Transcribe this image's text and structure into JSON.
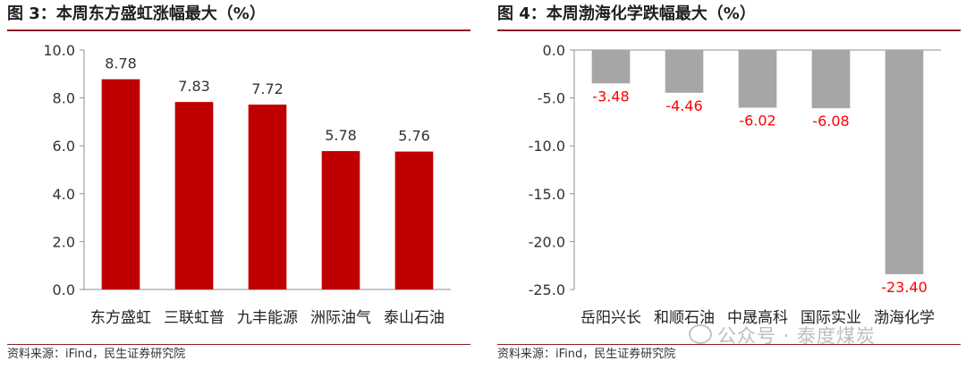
{
  "charts": [
    {
      "title": "图 3：本周东方盛虹涨幅最大（%）",
      "source": "资料来源：iFind，民生证券研究院"
    },
    {
      "title": "图 4：本周渤海化学跌幅最大（%）",
      "source": "资料来源：iFind，民生证券研究院"
    }
  ],
  "watermark": "公众号 · 泰度煤炭",
  "chart_data": [
    {
      "type": "bar",
      "title": "图 3：本周东方盛虹涨幅最大（%）",
      "categories": [
        "东方盛虹",
        "三联虹普",
        "九丰能源",
        "洲际油气",
        "泰山石油"
      ],
      "values": [
        8.78,
        7.83,
        7.72,
        5.78,
        5.76
      ],
      "data_labels": [
        "8.78",
        "7.83",
        "7.72",
        "5.78",
        "5.76"
      ],
      "ylim": [
        0,
        10
      ],
      "yticks": [
        "0.0",
        "2.0",
        "4.0",
        "6.0",
        "8.0",
        "10.0"
      ],
      "bar_color": "#c00000",
      "label_color": "#333333",
      "grid": false,
      "legend": "none"
    },
    {
      "type": "bar",
      "title": "图 4：本周渤海化学跌幅最大（%）",
      "categories": [
        "岳阳兴长",
        "和顺石油",
        "中晟高科",
        "国际实业",
        "渤海化学"
      ],
      "values": [
        -3.48,
        -4.46,
        -6.02,
        -6.08,
        -23.4
      ],
      "data_labels": [
        "-3.48",
        "-4.46",
        "-6.02",
        "-6.08",
        "-23.40"
      ],
      "ylim": [
        -25,
        0
      ],
      "yticks": [
        "0.0",
        "-5.0",
        "-10.0",
        "-15.0",
        "-20.0",
        "-25.0"
      ],
      "bar_color": "#a6a6a6",
      "label_color": "#ff0000",
      "grid": false,
      "legend": "none"
    }
  ]
}
